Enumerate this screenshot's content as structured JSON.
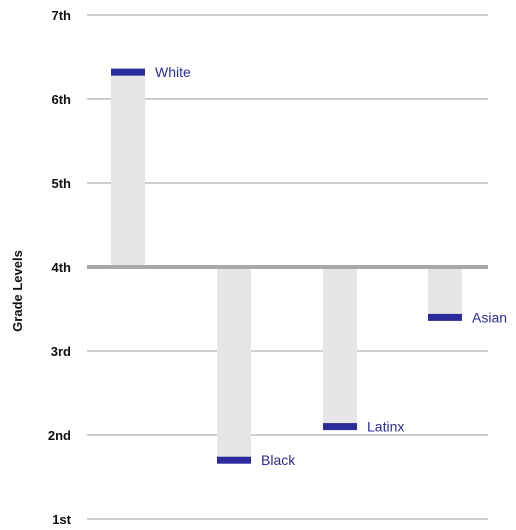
{
  "chart_data": {
    "type": "bar",
    "ylabel": "Grade Levels",
    "y_ticks": [
      {
        "value": 7,
        "label": "7th"
      },
      {
        "value": 6,
        "label": "6th"
      },
      {
        "value": 5,
        "label": "5th"
      },
      {
        "value": 4,
        "label": "4th"
      },
      {
        "value": 3,
        "label": "3rd"
      },
      {
        "value": 2,
        "label": "2nd"
      },
      {
        "value": 1,
        "label": "1st"
      }
    ],
    "ylim": [
      1,
      7
    ],
    "baseline": 4,
    "grid": true,
    "categories": [
      "White",
      "Black",
      "Latinx",
      "Asian"
    ],
    "values": [
      6.32,
      1.7,
      2.1,
      3.4
    ]
  },
  "colors": {
    "marker": "#2b2b9b",
    "bar": "#e6e6e6",
    "grid": "#cfcfcf",
    "baseline": "#a8a8a8",
    "label_text": "#2b2b9b"
  }
}
